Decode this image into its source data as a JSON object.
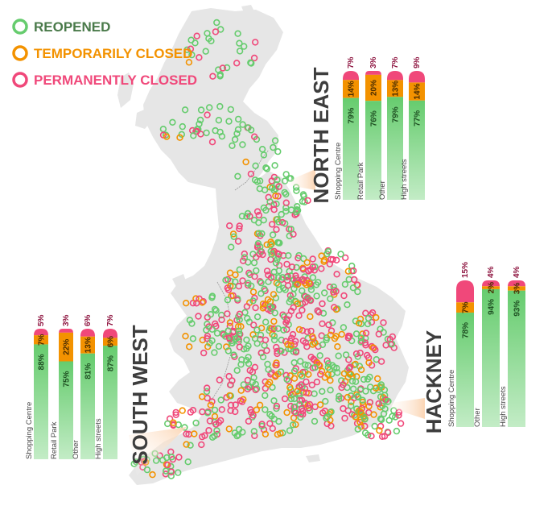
{
  "colors": {
    "reopened": "#66CC6E",
    "reopened_light": "#B5E8B8",
    "temporarily_closed": "#F39200",
    "permanently_closed": "#F0487A",
    "map_land": "#E6E6E6",
    "map_border": "#9A9A9A",
    "title": "#3D3D3D"
  },
  "legend": [
    {
      "key": "reopened",
      "label": "REOPENED",
      "text_color": "#4A7A4A"
    },
    {
      "key": "temporarily_closed",
      "label": "TEMPORARILY CLOSED",
      "text_color": "#F39200"
    },
    {
      "key": "permanently_closed",
      "label": "PERMANENTLY CLOSED",
      "text_color": "#F0487A"
    }
  ],
  "chart_data": [
    {
      "type": "bar",
      "stacked": true,
      "title": "NORTH EAST",
      "categories": [
        "Shopping Centre",
        "Retail Park",
        "Other",
        "High streets"
      ],
      "series": [
        {
          "name": "REOPENED",
          "values": [
            79,
            76,
            79,
            77
          ]
        },
        {
          "name": "TEMPORARILY CLOSED",
          "values": [
            14,
            20,
            13,
            14
          ]
        },
        {
          "name": "PERMANENTLY CLOSED",
          "values": [
            7,
            3,
            7,
            9
          ]
        }
      ]
    },
    {
      "type": "bar",
      "stacked": true,
      "title": "HACKNEY",
      "categories": [
        "Shopping Centre",
        "Other",
        "High streets"
      ],
      "series": [
        {
          "name": "REOPENED",
          "values": [
            78,
            94,
            93
          ]
        },
        {
          "name": "TEMPORARILY CLOSED",
          "values": [
            7,
            2,
            3
          ]
        },
        {
          "name": "PERMANENTLY CLOSED",
          "values": [
            15,
            4,
            4
          ]
        }
      ]
    },
    {
      "type": "bar",
      "stacked": true,
      "title": "SOUTH WEST",
      "categories": [
        "Shopping Centre",
        "Retail Park",
        "Other",
        "High streets"
      ],
      "series": [
        {
          "name": "REOPENED",
          "values": [
            88,
            75,
            81,
            87
          ]
        },
        {
          "name": "TEMPORARILY CLOSED",
          "values": [
            7,
            22,
            13,
            6
          ]
        },
        {
          "name": "PERMANENTLY CLOSED",
          "values": [
            5,
            3,
            6,
            7
          ]
        }
      ]
    }
  ]
}
